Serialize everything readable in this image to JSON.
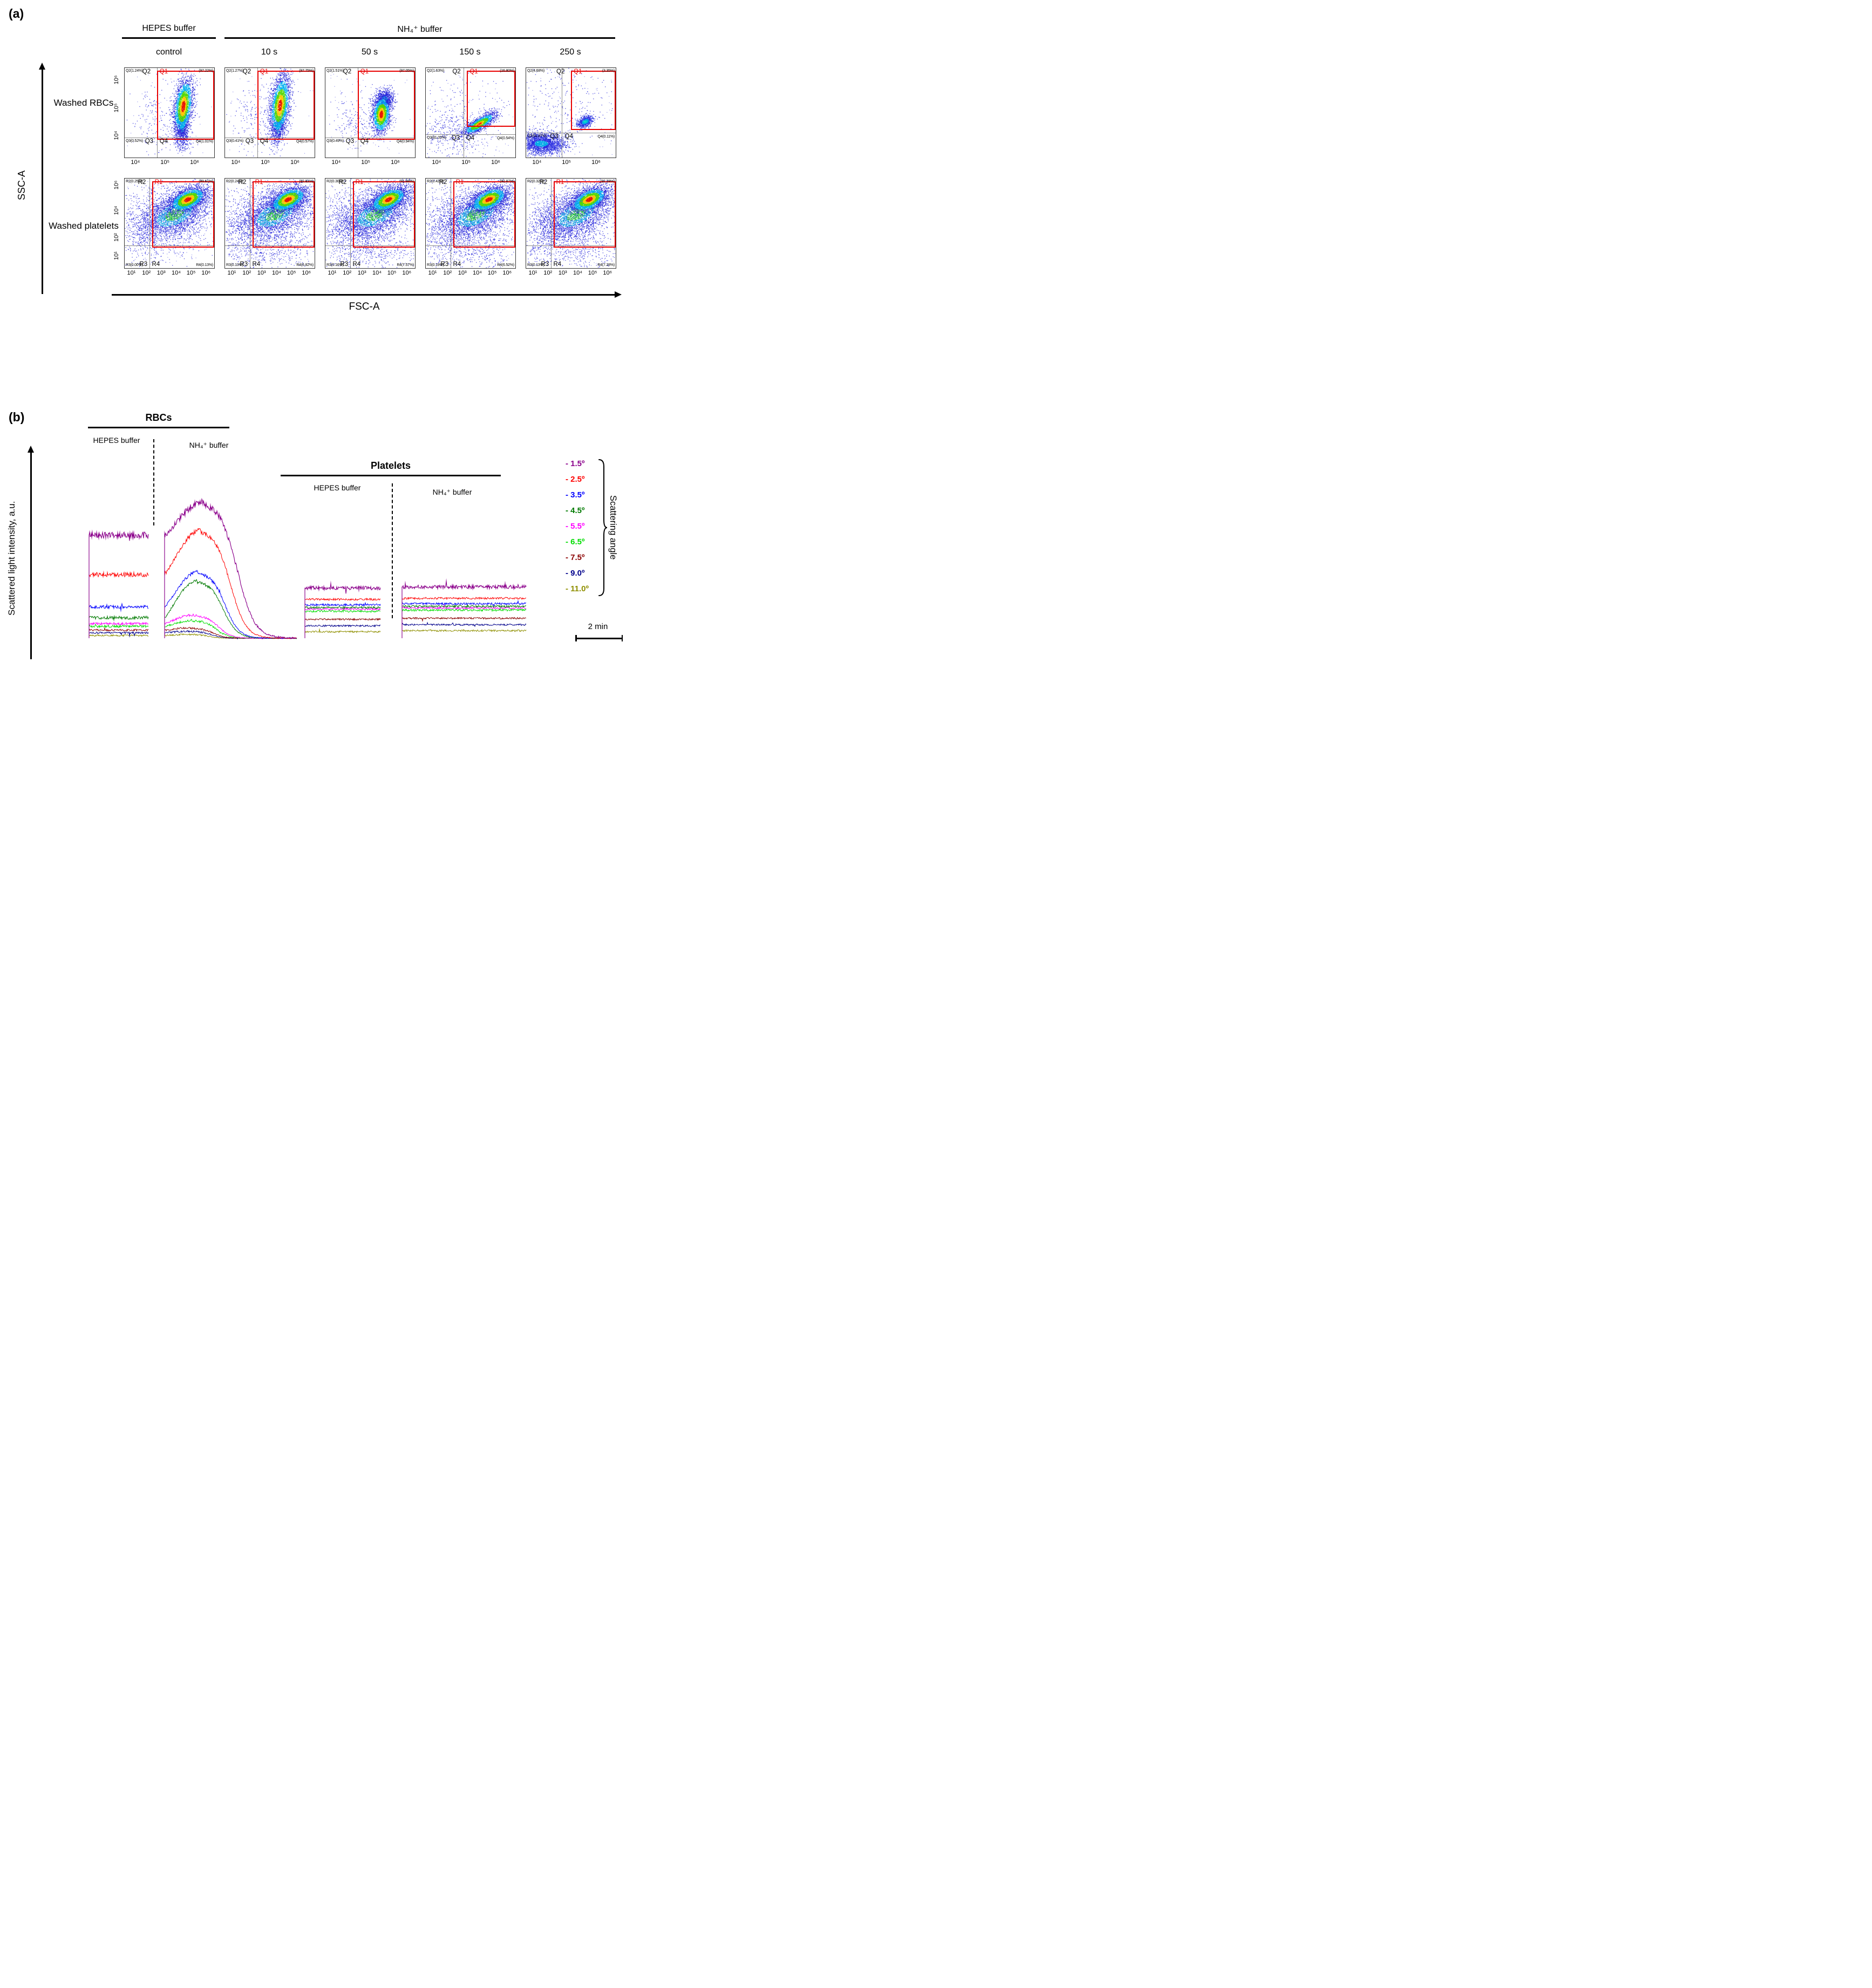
{
  "figure": {
    "panel_a_label": "(a)",
    "panel_b_label": "(b)"
  },
  "panel_a": {
    "buffer_headers": {
      "hepes": "HEPES buffer",
      "nh4": "NH₄⁺ buffer"
    },
    "column_labels": [
      "control",
      "10 s",
      "50 s",
      "150 s",
      "250 s"
    ],
    "row_labels": {
      "rbc": "Washed RBCs",
      "platelets": "Washed platelets"
    },
    "x_axis_label": "FSC-A",
    "y_axis_label": "SSC-A",
    "quad_names": {
      "q1": "Q1",
      "q2": "Q2",
      "q3": "Q3",
      "q4": "Q4",
      "r1": "R1",
      "r2": "R2",
      "r3": "R3",
      "r4": "R4"
    },
    "rbc_x_ticks": [
      "10⁴",
      "10⁵",
      "10⁶"
    ],
    "rbc_y_ticks": [
      "10⁶",
      "10⁵",
      "10⁴"
    ],
    "platelet_x_ticks": [
      "10¹",
      "10²",
      "10³",
      "10⁴",
      "10⁵",
      "10⁶"
    ],
    "platelet_y_ticks": [
      "10⁶",
      "10⁴",
      "10²",
      "10¹"
    ],
    "rbc_plots": [
      {
        "q2_pct": "Q2(1.24%)",
        "q1_pct": "(97.22%)",
        "q3_pct": "Q3(0.52%)",
        "q4_pct": "Q4(1.01%)"
      },
      {
        "q2_pct": "Q2(1.27%)",
        "q1_pct": "(97.75%)",
        "q3_pct": "Q3(0.41%)",
        "q4_pct": "Q4(0.57%)"
      },
      {
        "q2_pct": "Q2(1.51%)",
        "q1_pct": "(97.05%)",
        "q3_pct": "Q3(0.49%)",
        "q4_pct": "Q4(0.94%)"
      },
      {
        "q2_pct": "Q2(1.63%)",
        "q1_pct": "(16.80%)",
        "q3_pct": "Q3(81.03%)",
        "q4_pct": "Q4(0.54%)"
      },
      {
        "q2_pct": "Q2(4.68%)",
        "q1_pct": "(3.35%)",
        "q3_pct": "Q3(91.87%)",
        "q4_pct": "Q4(0.11%)"
      }
    ],
    "platelet_plots": [
      {
        "r2_pct": "R2(0.25%)",
        "r1_pct": "(99.61%)",
        "r3_pct": "R3(0.00%)",
        "r4_pct": "R4(0.13%)"
      },
      {
        "r2_pct": "R2(0.24%)",
        "r1_pct": "(92.81%)",
        "r3_pct": "R3(0.13%)",
        "r4_pct": "R4(6.82%)"
      },
      {
        "r2_pct": "R2(0.30%)",
        "r1_pct": "(91.98%)",
        "r3_pct": "R3(0.16%)",
        "r4_pct": "R4(7.57%)"
      },
      {
        "r2_pct": "R2(0.42%)",
        "r1_pct": "(92.87%)",
        "r3_pct": "R3(0.19%)",
        "r4_pct": "R4(6.52%)"
      },
      {
        "r2_pct": "R2(0.32%)",
        "r1_pct": "(92.28%)",
        "r3_pct": "R3(0.13%)",
        "r4_pct": "R4(7.28%)"
      }
    ]
  },
  "panel_b": {
    "rbc_header": "RBCs",
    "platelet_header": "Platelets",
    "rbc_hepes_label": "HEPES buffer",
    "rbc_nh4_label": "NH₄⁺ buffer",
    "platelet_hepes_label": "HEPES buffer",
    "platelet_nh4_label": "NH₄⁺ buffer",
    "y_axis_label": "Scattered light intensity, a.u.",
    "scattering_angle_label": "Scattering angle",
    "scale_bar_label": "2 min",
    "legend": [
      {
        "label": "- 1.5º",
        "color": "#8b008b"
      },
      {
        "label": "- 2.5º",
        "color": "#ff0000"
      },
      {
        "label": "- 3.5º",
        "color": "#0000ff"
      },
      {
        "label": "- 4.5º",
        "color": "#007a00"
      },
      {
        "label": "- 5.5º",
        "color": "#ff00ff"
      },
      {
        "label": "- 6.5º",
        "color": "#00dd00"
      },
      {
        "label": "- 7.5º",
        "color": "#8b0000"
      },
      {
        "label": "- 9.0º",
        "color": "#00008b"
      },
      {
        "label": "- 11.0º",
        "color": "#8f8f00"
      }
    ]
  },
  "chart_data": [
    {
      "type": "scatter",
      "subtype": "flow-cytometry-density-plot",
      "title": "Washed RBCs, FSC-A vs SSC-A",
      "xlabel": "FSC-A",
      "ylabel": "SSC-A",
      "x_ticks": [
        "10⁴",
        "10⁵",
        "10⁶"
      ],
      "y_ticks": [
        "10⁴",
        "10⁵",
        "10⁶"
      ],
      "conditions": [
        "control (HEPES buffer)",
        "10 s NH₄⁺ buffer",
        "50 s NH₄⁺ buffer",
        "150 s NH₄⁺ buffer",
        "250 s NH₄⁺ buffer"
      ],
      "quadrant_percentages": {
        "Q1": [
          97.22,
          97.75,
          97.05,
          16.8,
          3.35
        ],
        "Q2": [
          1.24,
          1.27,
          1.51,
          1.63,
          4.68
        ],
        "Q3": [
          0.52,
          0.41,
          0.49,
          81.03,
          91.87
        ],
        "Q4": [
          1.01,
          0.57,
          0.94,
          0.54,
          0.11
        ]
      }
    },
    {
      "type": "scatter",
      "subtype": "flow-cytometry-density-plot",
      "title": "Washed platelets, FSC-A vs SSC-A",
      "xlabel": "FSC-A",
      "ylabel": "SSC-A",
      "x_ticks": [
        "10¹",
        "10²",
        "10³",
        "10⁴",
        "10⁵",
        "10⁶"
      ],
      "y_ticks": [
        "10¹",
        "10²",
        "10⁴",
        "10⁶"
      ],
      "conditions": [
        "control (HEPES buffer)",
        "10 s NH₄⁺ buffer",
        "50 s NH₄⁺ buffer",
        "150 s NH₄⁺ buffer",
        "250 s NH₄⁺ buffer"
      ],
      "gate_percentages": {
        "R1": [
          99.61,
          92.81,
          91.98,
          92.87,
          92.28
        ],
        "R2": [
          0.25,
          0.24,
          0.3,
          0.42,
          0.32
        ],
        "R3": [
          0.0,
          0.13,
          0.16,
          0.19,
          0.13
        ],
        "R4": [
          0.13,
          6.82,
          7.57,
          6.52,
          7.28
        ]
      }
    },
    {
      "type": "line",
      "subtype": "kinetic-light-scattering-traces",
      "title": "Scattered light intensity vs time for RBCs and platelets in HEPES and NH₄⁺ buffers",
      "ylabel": "Scattered light intensity, a.u.",
      "xlabel": "time (scale bar = 2 min)",
      "groups": [
        "RBCs / HEPES buffer",
        "RBCs / NH₄⁺ buffer",
        "Platelets / HEPES buffer",
        "Platelets / NH₄⁺ buffer"
      ],
      "series": [
        {
          "name": "- 1.5º",
          "color": "#8b008b"
        },
        {
          "name": "- 2.5º",
          "color": "#ff0000"
        },
        {
          "name": "- 3.5º",
          "color": "#0000ff"
        },
        {
          "name": "- 4.5º",
          "color": "#007a00"
        },
        {
          "name": "- 5.5º",
          "color": "#ff00ff"
        },
        {
          "name": "- 6.5º",
          "color": "#00dd00"
        },
        {
          "name": "- 7.5º",
          "color": "#8b0000"
        },
        {
          "name": "- 9.0º",
          "color": "#00008b"
        },
        {
          "name": "- 11.0º",
          "color": "#8f8f00"
        }
      ],
      "behavior": {
        "rbc_hepes": "stable flat noisy traces, intensity decreasing with scattering angle",
        "rbc_nh4": "traces rise to a transient maximum then decay to baseline (cell swelling and lysis)",
        "platelet_hepes": "stable flat noisy traces",
        "platelet_nh4": "stable flat noisy traces (no lysis)"
      },
      "legend_position": "right",
      "grid": false
    }
  ]
}
